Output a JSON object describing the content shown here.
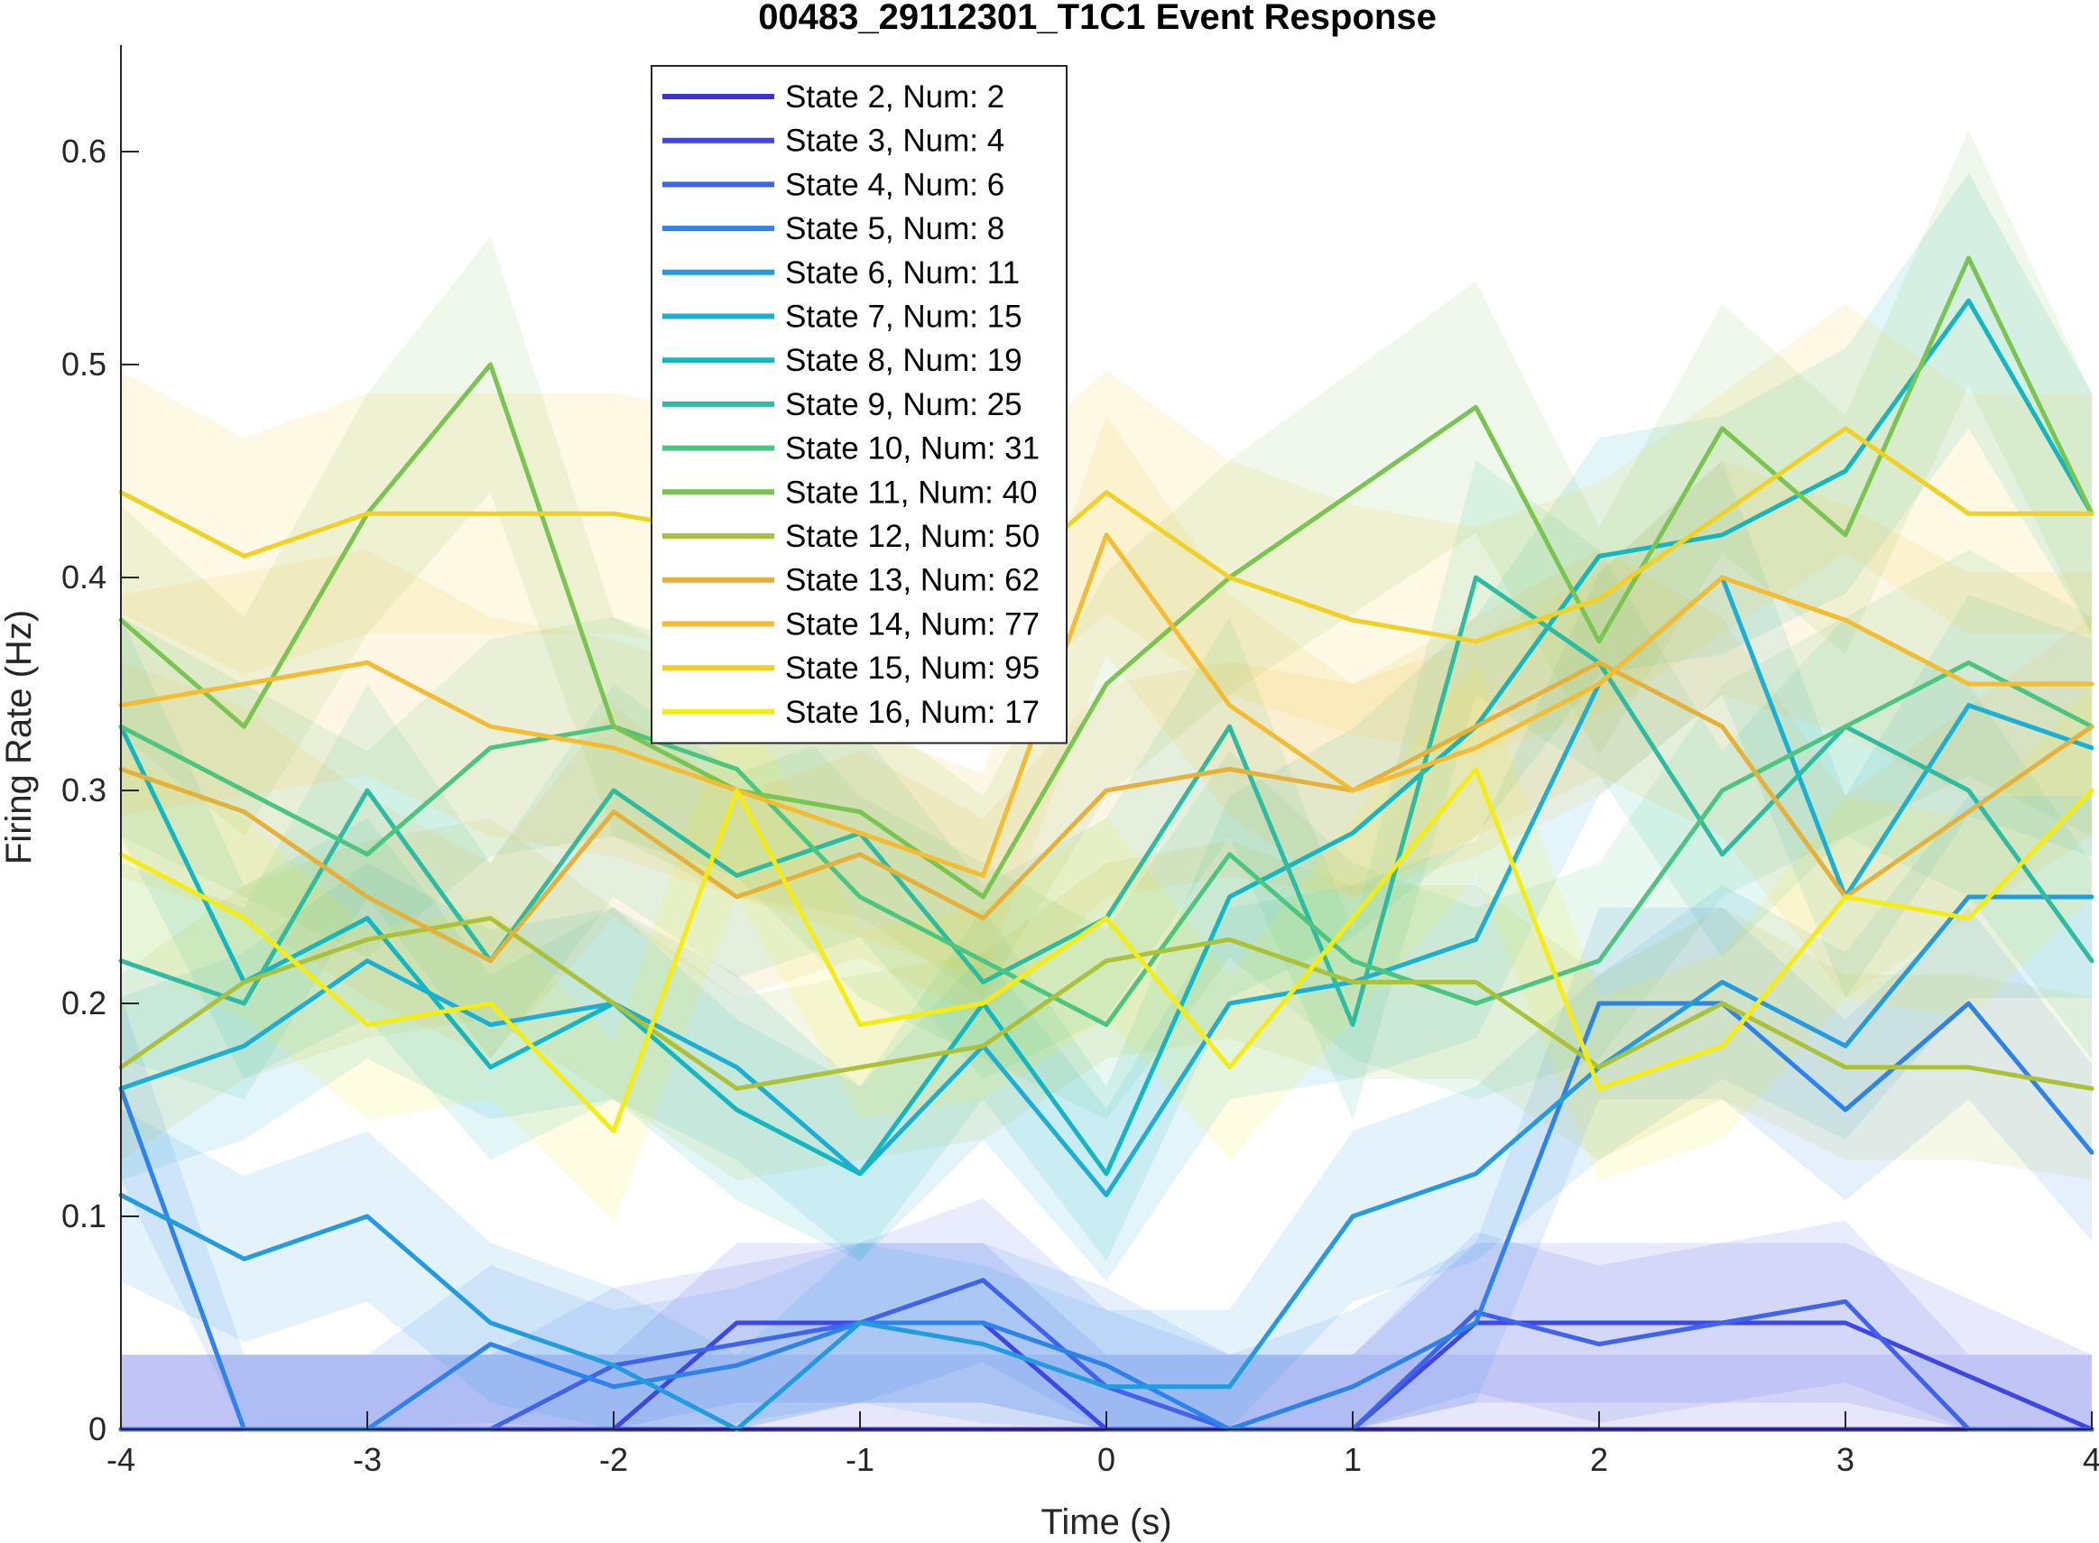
{
  "chart_data": {
    "type": "line",
    "title": "00483_29112301_T1C1 Event Response",
    "xlabel": "Time (s)",
    "ylabel": "Firing Rate (Hz)",
    "xlim": [
      -4,
      4
    ],
    "ylim": [
      0,
      0.65
    ],
    "xticks": [
      "-4",
      "-3",
      "-2",
      "-1",
      "0",
      "1",
      "2",
      "3",
      "4"
    ],
    "yticks": [
      "0",
      "0.1",
      "0.2",
      "0.3",
      "0.4",
      "0.5",
      "0.6"
    ],
    "grid": false,
    "legend_position": "top-center",
    "x": [
      -4.0,
      -3.5,
      -3.0,
      -2.5,
      -2.0,
      -1.5,
      -1.0,
      -0.5,
      0.0,
      0.5,
      1.0,
      1.5,
      2.0,
      2.5,
      3.0,
      3.5,
      4.0
    ],
    "series": [
      {
        "name": "State 2, Num: 2",
        "color": "#3f2fd6",
        "values": [
          0,
          0,
          0,
          0,
          0,
          0,
          0,
          0,
          0,
          0,
          0,
          0,
          0,
          0,
          0,
          0,
          0
        ]
      },
      {
        "name": "State 3, Num: 4",
        "color": "#3f46e6",
        "values": [
          0,
          0,
          0,
          0,
          0,
          0.05,
          0.05,
          0.05,
          0,
          0,
          0,
          0.05,
          0.05,
          0.05,
          0.05,
          0.025,
          0
        ]
      },
      {
        "name": "State 4, Num: 6",
        "color": "#3f63ea",
        "values": [
          0,
          0,
          0,
          0,
          0.03,
          0.04,
          0.05,
          0.07,
          0.02,
          0,
          0,
          0.055,
          0.04,
          0.05,
          0.06,
          0,
          0
        ]
      },
      {
        "name": "State 5, Num: 8",
        "color": "#2e83eb",
        "values": [
          0.16,
          0,
          0,
          0.04,
          0.02,
          0.03,
          0.05,
          0.05,
          0.03,
          0,
          0.02,
          0.05,
          0.2,
          0.2,
          0.15,
          0.2,
          0.13
        ]
      },
      {
        "name": "State 6, Num: 11",
        "color": "#239cdf",
        "values": [
          0.11,
          0.08,
          0.1,
          0.05,
          0.03,
          0,
          0.05,
          0.04,
          0.02,
          0.02,
          0.1,
          0.12,
          0.17,
          0.21,
          0.18,
          0.25,
          0.25
        ]
      },
      {
        "name": "State 7, Num: 15",
        "color": "#1cafd6",
        "values": [
          0.16,
          0.18,
          0.22,
          0.19,
          0.2,
          0.17,
          0.12,
          0.18,
          0.11,
          0.2,
          0.21,
          0.23,
          0.35,
          0.4,
          0.25,
          0.34,
          0.32
        ]
      },
      {
        "name": "State 8, Num: 19",
        "color": "#13b7c2",
        "values": [
          0.33,
          0.21,
          0.24,
          0.17,
          0.2,
          0.15,
          0.12,
          0.2,
          0.12,
          0.25,
          0.28,
          0.33,
          0.41,
          0.42,
          0.45,
          0.53,
          0.43
        ]
      },
      {
        "name": "State 9, Num: 25",
        "color": "#2dbca2",
        "values": [
          0.22,
          0.2,
          0.3,
          0.22,
          0.3,
          0.26,
          0.28,
          0.21,
          0.24,
          0.33,
          0.19,
          0.4,
          0.36,
          0.27,
          0.33,
          0.3,
          0.22
        ]
      },
      {
        "name": "State 10, Num: 31",
        "color": "#4cc580",
        "values": [
          0.33,
          0.3,
          0.27,
          0.32,
          0.33,
          0.31,
          0.25,
          0.22,
          0.19,
          0.27,
          0.22,
          0.2,
          0.22,
          0.3,
          0.33,
          0.36,
          0.33
        ]
      },
      {
        "name": "State 11, Num: 40",
        "color": "#7ac451",
        "values": [
          0.38,
          0.33,
          0.43,
          0.5,
          0.33,
          0.3,
          0.29,
          0.25,
          0.35,
          0.4,
          0.44,
          0.48,
          0.37,
          0.47,
          0.42,
          0.55,
          0.43
        ]
      },
      {
        "name": "State 12, Num: 50",
        "color": "#adc138",
        "values": [
          0.17,
          0.21,
          0.23,
          0.24,
          0.2,
          0.16,
          0.17,
          0.18,
          0.22,
          0.23,
          0.21,
          0.21,
          0.17,
          0.2,
          0.17,
          0.17,
          0.16
        ]
      },
      {
        "name": "State 13, Num: 62",
        "color": "#e5b13a",
        "values": [
          0.31,
          0.29,
          0.25,
          0.22,
          0.29,
          0.25,
          0.27,
          0.24,
          0.3,
          0.31,
          0.3,
          0.33,
          0.36,
          0.33,
          0.25,
          0.29,
          0.33
        ]
      },
      {
        "name": "State 14, Num: 77",
        "color": "#f4bc33",
        "values": [
          0.34,
          0.35,
          0.36,
          0.33,
          0.32,
          0.3,
          0.28,
          0.26,
          0.42,
          0.34,
          0.3,
          0.32,
          0.35,
          0.4,
          0.38,
          0.35,
          0.35
        ]
      },
      {
        "name": "State 15, Num: 95",
        "color": "#f1d126",
        "values": [
          0.44,
          0.41,
          0.43,
          0.43,
          0.43,
          0.42,
          0.4,
          0.39,
          0.44,
          0.4,
          0.38,
          0.37,
          0.39,
          0.43,
          0.47,
          0.43,
          0.43
        ]
      },
      {
        "name": "State 16, Num: 17",
        "color": "#f4ec14",
        "values": [
          0.27,
          0.24,
          0.19,
          0.2,
          0.14,
          0.3,
          0.19,
          0.2,
          0.24,
          0.17,
          0.24,
          0.31,
          0.16,
          0.18,
          0.25,
          0.24,
          0.3
        ]
      }
    ]
  }
}
